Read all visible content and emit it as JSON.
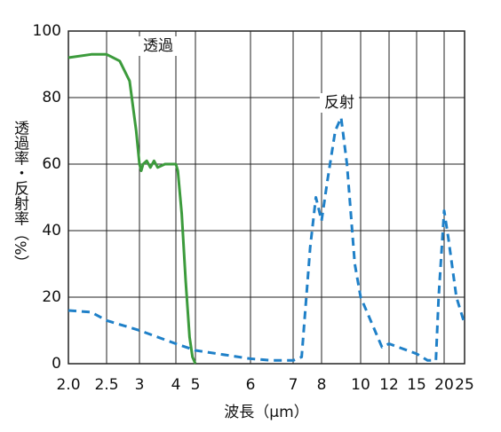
{
  "chart_data": {
    "type": "line",
    "x_label": "波長（μm）",
    "y_label": "透過率・反射率（%）",
    "xlim": [
      2,
      25
    ],
    "ylim": [
      0,
      100
    ],
    "xticks": [
      {
        "value": 2,
        "label": "2.0"
      },
      2.5,
      3,
      4,
      5,
      6,
      7,
      8,
      10,
      12,
      15,
      20,
      25
    ],
    "yticks": [
      0,
      20,
      40,
      60,
      80,
      100
    ],
    "grid": true,
    "series": [
      {
        "name": "透過",
        "color": "#3c9b3c",
        "style": "solid",
        "x": [
          2.0,
          2.3,
          2.5,
          2.7,
          2.85,
          2.95,
          3.0,
          3.05,
          3.1,
          3.2,
          3.3,
          3.4,
          3.5,
          3.7,
          3.9,
          4.0,
          4.1,
          4.3,
          4.5,
          4.7,
          4.85,
          5.0
        ],
        "values": [
          92,
          93,
          93,
          91,
          85,
          70,
          60,
          58,
          60,
          61,
          59,
          61,
          59,
          60,
          60,
          60,
          58,
          45,
          25,
          8,
          2,
          0
        ]
      },
      {
        "name": "反射",
        "color": "#1f80c8",
        "style": "dashed",
        "x": [
          2.0,
          2.3,
          2.5,
          3,
          4,
          5,
          6,
          6.5,
          7,
          7.3,
          7.6,
          7.8,
          8.0,
          8.3,
          8.7,
          9.0,
          9.3,
          9.7,
          10,
          11,
          11.5,
          12,
          13,
          15,
          17,
          18.5,
          19,
          20,
          21,
          23,
          25
        ],
        "values": [
          16,
          15.5,
          13,
          10,
          6,
          4,
          1.5,
          1,
          1,
          2,
          35,
          50,
          43,
          55,
          70,
          74,
          60,
          30,
          20,
          10,
          5,
          6,
          5,
          3,
          1,
          1,
          20,
          46,
          38,
          20,
          12
        ]
      }
    ]
  }
}
